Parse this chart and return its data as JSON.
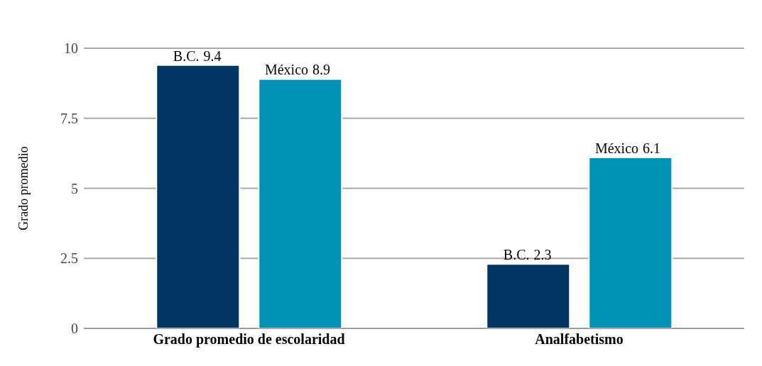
{
  "chart_data": {
    "type": "bar",
    "ylabel": "Grado promedio",
    "categories": [
      "Grado promedio de escolaridad",
      "Analfabetismo"
    ],
    "series": [
      {
        "name": "B.C.",
        "color": "#003561",
        "values": [
          9.4,
          2.3
        ]
      },
      {
        "name": "México",
        "color": "#0092b4",
        "values": [
          8.9,
          6.1
        ]
      }
    ],
    "ylim": [
      0,
      10
    ],
    "yticks": [
      0,
      2.5,
      5,
      7.5,
      10
    ],
    "grid": "y",
    "data_labels": true
  }
}
